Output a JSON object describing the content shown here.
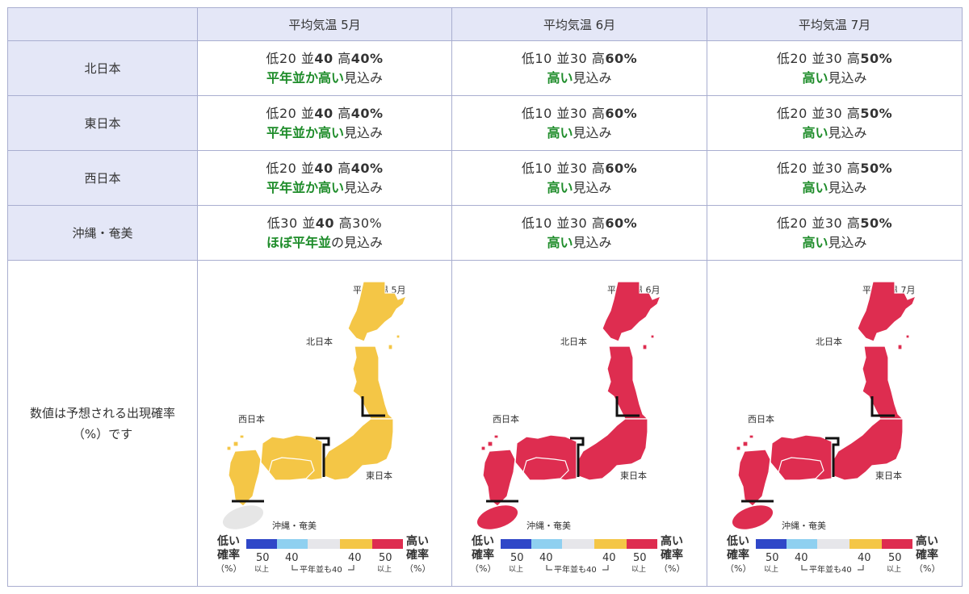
{
  "table": {
    "corner": "",
    "columns": [
      "平均気温 5月",
      "平均気温 6月",
      "平均気温 7月"
    ],
    "rows": [
      {
        "region": "北日本",
        "cells": [
          {
            "lo_label": "低",
            "lo": "20",
            "mid_label": "並",
            "mid": "40",
            "hi_label": "高",
            "hi": "40%",
            "bold": "mid,hi",
            "verdict_hl": "平年並か高い",
            "verdict_rest": "見込み"
          },
          {
            "lo_label": "低",
            "lo": "10",
            "mid_label": "並",
            "mid": "30",
            "hi_label": "高",
            "hi": "60%",
            "bold": "hi",
            "verdict_hl": "高い",
            "verdict_rest": "見込み"
          },
          {
            "lo_label": "低",
            "lo": "20",
            "mid_label": "並",
            "mid": "30",
            "hi_label": "高",
            "hi": "50%",
            "bold": "hi",
            "verdict_hl": "高い",
            "verdict_rest": "見込み"
          }
        ]
      },
      {
        "region": "東日本",
        "cells": [
          {
            "lo_label": "低",
            "lo": "20",
            "mid_label": "並",
            "mid": "40",
            "hi_label": "高",
            "hi": "40%",
            "bold": "mid,hi",
            "verdict_hl": "平年並か高い",
            "verdict_rest": "見込み"
          },
          {
            "lo_label": "低",
            "lo": "10",
            "mid_label": "並",
            "mid": "30",
            "hi_label": "高",
            "hi": "60%",
            "bold": "hi",
            "verdict_hl": "高い",
            "verdict_rest": "見込み"
          },
          {
            "lo_label": "低",
            "lo": "20",
            "mid_label": "並",
            "mid": "30",
            "hi_label": "高",
            "hi": "50%",
            "bold": "hi",
            "verdict_hl": "高い",
            "verdict_rest": "見込み"
          }
        ]
      },
      {
        "region": "西日本",
        "cells": [
          {
            "lo_label": "低",
            "lo": "20",
            "mid_label": "並",
            "mid": "40",
            "hi_label": "高",
            "hi": "40%",
            "bold": "mid,hi",
            "verdict_hl": "平年並か高い",
            "verdict_rest": "見込み"
          },
          {
            "lo_label": "低",
            "lo": "10",
            "mid_label": "並",
            "mid": "30",
            "hi_label": "高",
            "hi": "60%",
            "bold": "hi",
            "verdict_hl": "高い",
            "verdict_rest": "見込み"
          },
          {
            "lo_label": "低",
            "lo": "20",
            "mid_label": "並",
            "mid": "30",
            "hi_label": "高",
            "hi": "50%",
            "bold": "hi",
            "verdict_hl": "高い",
            "verdict_rest": "見込み"
          }
        ]
      },
      {
        "region": "沖縄・奄美",
        "cells": [
          {
            "lo_label": "低",
            "lo": "30",
            "mid_label": "並",
            "mid": "40",
            "hi_label": "高",
            "hi": "30%",
            "bold": "mid",
            "verdict_hl": "ほぼ平年並",
            "verdict_rest": "の見込み"
          },
          {
            "lo_label": "低",
            "lo": "10",
            "mid_label": "並",
            "mid": "30",
            "hi_label": "高",
            "hi": "60%",
            "bold": "hi",
            "verdict_hl": "高い",
            "verdict_rest": "見込み"
          },
          {
            "lo_label": "低",
            "lo": "20",
            "mid_label": "並",
            "mid": "30",
            "hi_label": "高",
            "hi": "50%",
            "bold": "hi",
            "verdict_hl": "高い",
            "verdict_rest": "見込み"
          }
        ]
      }
    ],
    "note_line1": "数値は予想される出現確率",
    "note_line2": "（%）です"
  },
  "maps": [
    {
      "title": "平均気温 5月",
      "mainland_color": "#f4c646",
      "okinawa_color": "#e6e6e6"
    },
    {
      "title": "平均気温 6月",
      "mainland_color": "#de2d50",
      "okinawa_color": "#de2d50"
    },
    {
      "title": "平均気温 7月",
      "mainland_color": "#de2d50",
      "okinawa_color": "#de2d50"
    }
  ],
  "map_labels": {
    "north": "北日本",
    "west": "西日本",
    "east": "東日本",
    "okinawa": "沖縄・奄美"
  },
  "legend": {
    "low_line1": "低い",
    "low_line2": "確率",
    "low_unit": "（%）",
    "high_line1": "高い",
    "high_line2": "確率",
    "high_unit": "（%）",
    "tick_50_left": "50",
    "tick_40_left": "40",
    "tick_40_right": "40",
    "tick_50_right": "50",
    "above_left": "以上",
    "above_right": "以上",
    "normal_note": "平年並も40",
    "colors": [
      "#2f47c8",
      "#8fd0f0",
      "#e6e6ea",
      "#f4c646",
      "#de2d50"
    ]
  }
}
